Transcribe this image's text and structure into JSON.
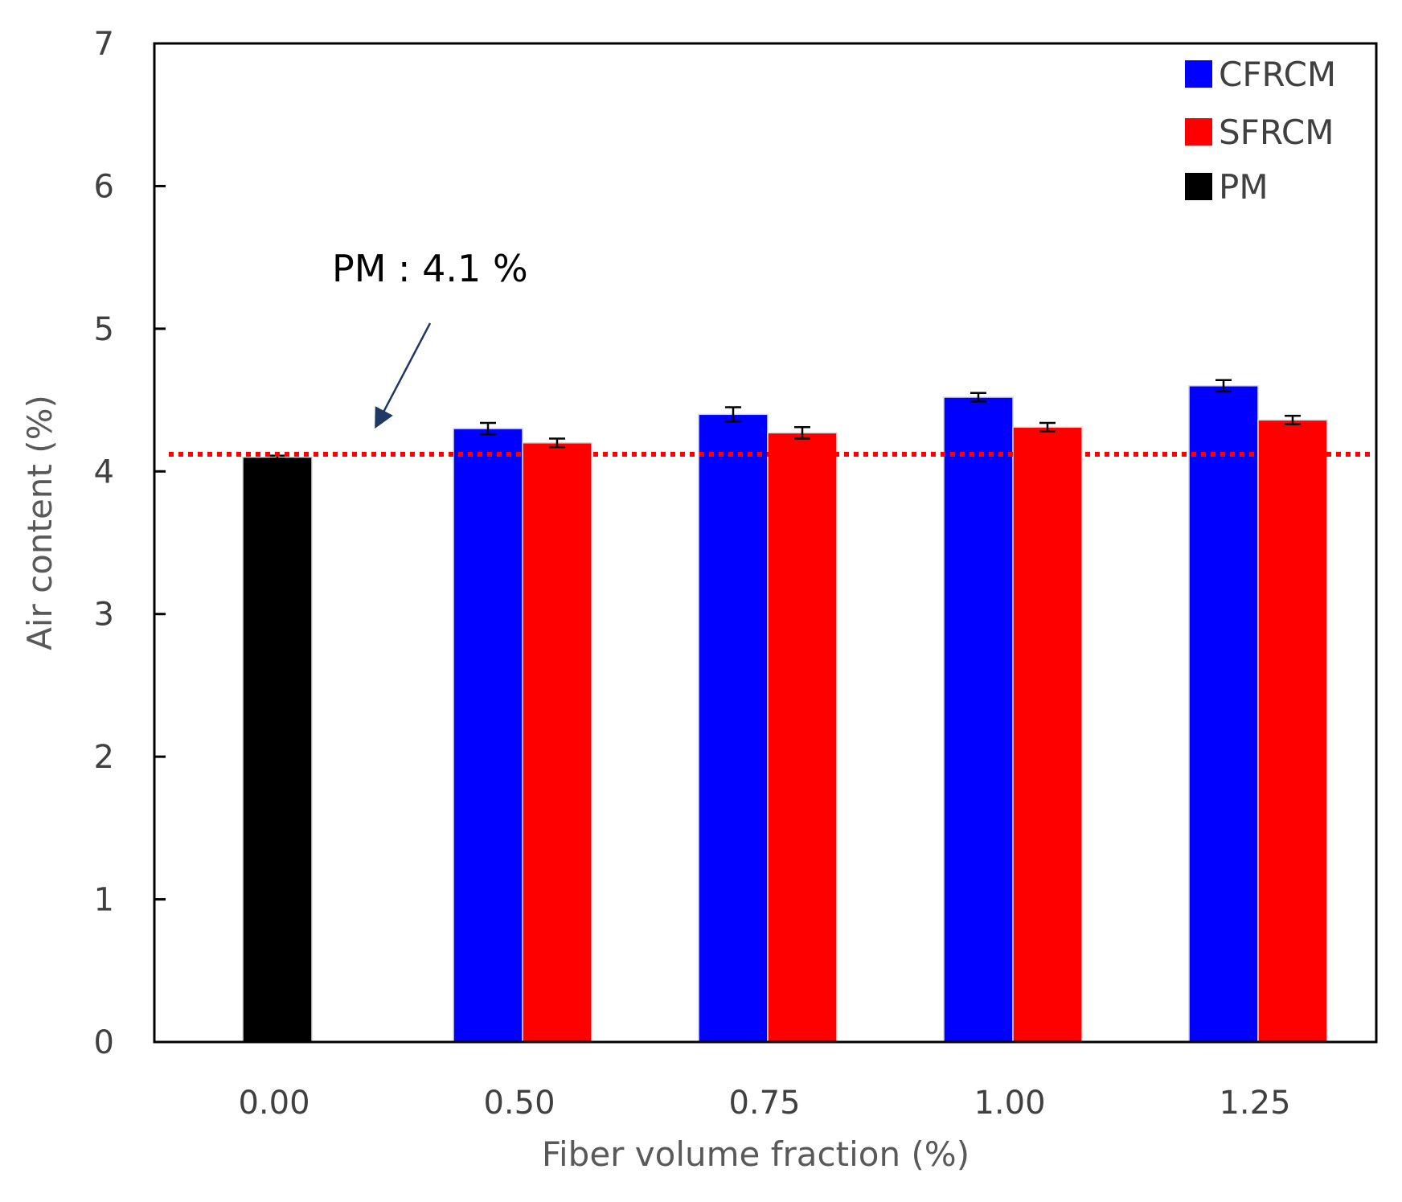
{
  "chart_data": {
    "type": "bar",
    "title": "",
    "xlabel": "Fiber volume fraction (%)",
    "ylabel": "Air content (%)",
    "ylim": [
      0,
      7
    ],
    "yticks": [
      0,
      1,
      2,
      3,
      4,
      5,
      6,
      7
    ],
    "categories": [
      "0.00",
      "0.50",
      "0.75",
      "1.00",
      "1.25"
    ],
    "series": [
      {
        "name": "CFRCM",
        "color": "#0000ff",
        "values": [
          null,
          4.3,
          4.4,
          4.52,
          4.6
        ],
        "errors": [
          null,
          0.04,
          0.05,
          0.03,
          0.04
        ]
      },
      {
        "name": "SFRCM",
        "color": "#ff0000",
        "values": [
          null,
          4.2,
          4.27,
          4.31,
          4.36
        ],
        "errors": [
          null,
          0.03,
          0.04,
          0.03,
          0.03
        ]
      },
      {
        "name": "PM",
        "color": "#000000",
        "values": [
          4.1,
          null,
          null,
          null,
          null
        ],
        "errors": [
          0.01,
          null,
          null,
          null,
          null
        ]
      }
    ],
    "reference_line": {
      "value": 4.12,
      "color": "#ff0000",
      "style": "dotted"
    },
    "annotation": {
      "text": "PM : 4.1 %",
      "arrow_color": "#1f3864"
    },
    "legend_position": "top-right",
    "grid": false
  }
}
